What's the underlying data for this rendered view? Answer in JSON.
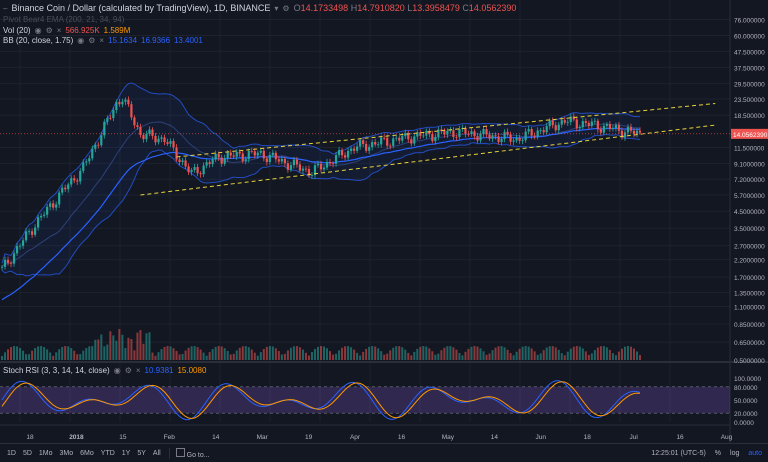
{
  "header": {
    "symbol_title": "Binance Coin / Dollar (calculated by TradingView), 1D, BINANCE",
    "ohlc": [
      {
        "k": "O",
        "v": "14.1733498"
      },
      {
        "k": "H",
        "v": "14.7910820"
      },
      {
        "k": "L",
        "v": "13.3958479"
      },
      {
        "k": "C",
        "v": "14.0562390"
      }
    ]
  },
  "indicators": {
    "vol": {
      "label": "Vol (20)",
      "v1": "566.925K",
      "v2": "1.589M"
    },
    "pivot": {
      "label": "Pivot Bear4 EMA (200, 21, 34, 94)"
    },
    "bb": {
      "label": "BB (20, close, 1.75)",
      "v1": "15.1634",
      "v2": "16.9366",
      "v3": "13.4001"
    },
    "stoch": {
      "label": "Stoch RSI (3, 3, 14, 14, close)",
      "k": "10.9381",
      "d": "15.0080"
    }
  },
  "colors": {
    "background": "#131722",
    "up": "#26a69a",
    "down": "#ef5350",
    "bb_band": "#2962ff",
    "ema": "#2962ff",
    "trendline": "#e8d23a",
    "stoch_k": "#2962ff",
    "stoch_d": "#ff9800",
    "stoch_band": "#7e57c2",
    "vol_ma": "#ff9800"
  },
  "price_axis": {
    "labels": [
      "76.000000",
      "60.000000",
      "47.500000",
      "37.500000",
      "29.500000",
      "23.500000",
      "18.500000",
      "11.500000",
      "9.1000000",
      "7.2000000",
      "5.7000000",
      "4.5000000",
      "3.5000000",
      "2.7000000",
      "2.2000000",
      "1.7000000",
      "1.3500000",
      "1.1000000",
      "0.8500000",
      "0.6500000",
      "0.5000000"
    ],
    "current_price": "14.0562390"
  },
  "stoch_axis": {
    "labels": [
      "100.0000",
      "80.0000",
      "50.0000",
      "20.0000",
      "0.0000"
    ]
  },
  "time_axis": {
    "labels": [
      "18",
      "2018",
      "15",
      "Feb",
      "14",
      "Mar",
      "19",
      "Apr",
      "16",
      "May",
      "14",
      "Jun",
      "18",
      "Jul",
      "16",
      "Aug"
    ]
  },
  "bottom_bar": {
    "ranges": [
      "1D",
      "5D",
      "1Mo",
      "3Mo",
      "6Mo",
      "YTD",
      "1Y",
      "5Y",
      "All"
    ],
    "goto": "Go to...",
    "clock": "12:25:01 (UTC-5)",
    "pct": "%",
    "log": "log",
    "auto": "auto"
  },
  "chart_data": {
    "type": "candlestick",
    "title": "Binance Coin / Dollar (calculated by TradingView), 1D, BINANCE",
    "x_range": [
      "2017-12-05",
      "2018-07-05"
    ],
    "y_scale": "log",
    "y_range": [
      0.5,
      90
    ],
    "key_points": [
      {
        "date": "2017-12-05",
        "close": 1.9
      },
      {
        "date": "2017-12-15",
        "close": 3.5
      },
      {
        "date": "2017-12-25",
        "close": 6.0
      },
      {
        "date": "2018-01-01",
        "close": 8.5
      },
      {
        "date": "2018-01-06",
        "close": 13.0
      },
      {
        "date": "2018-01-12",
        "close": 22.0
      },
      {
        "date": "2018-01-14",
        "close": 24.0
      },
      {
        "date": "2018-01-20",
        "close": 14.0
      },
      {
        "date": "2018-01-28",
        "close": 13.0
      },
      {
        "date": "2018-02-06",
        "close": 7.8
      },
      {
        "date": "2018-02-15",
        "close": 10.0
      },
      {
        "date": "2018-03-01",
        "close": 10.5
      },
      {
        "date": "2018-03-18",
        "close": 8.0
      },
      {
        "date": "2018-04-01",
        "close": 11.5
      },
      {
        "date": "2018-04-20",
        "close": 13.5
      },
      {
        "date": "2018-05-05",
        "close": 14.5
      },
      {
        "date": "2018-05-25",
        "close": 13.0
      },
      {
        "date": "2018-06-10",
        "close": 17.0
      },
      {
        "date": "2018-06-20",
        "close": 16.0
      },
      {
        "date": "2018-07-05",
        "close": 14.06
      }
    ],
    "trend_channel": {
      "upper": [
        {
          "date": "2018-02-01",
          "price": 10.0
        },
        {
          "date": "2018-07-30",
          "price": 22.0
        }
      ],
      "lower": [
        {
          "date": "2018-01-20",
          "price": 5.7
        },
        {
          "date": "2018-07-30",
          "price": 16.0
        }
      ]
    },
    "stoch_rsi": {
      "k": 10.9381,
      "d": 15.008,
      "bands": [
        20,
        80
      ]
    },
    "volume": {
      "last": "566.925K",
      "ma": "1.589M"
    }
  }
}
